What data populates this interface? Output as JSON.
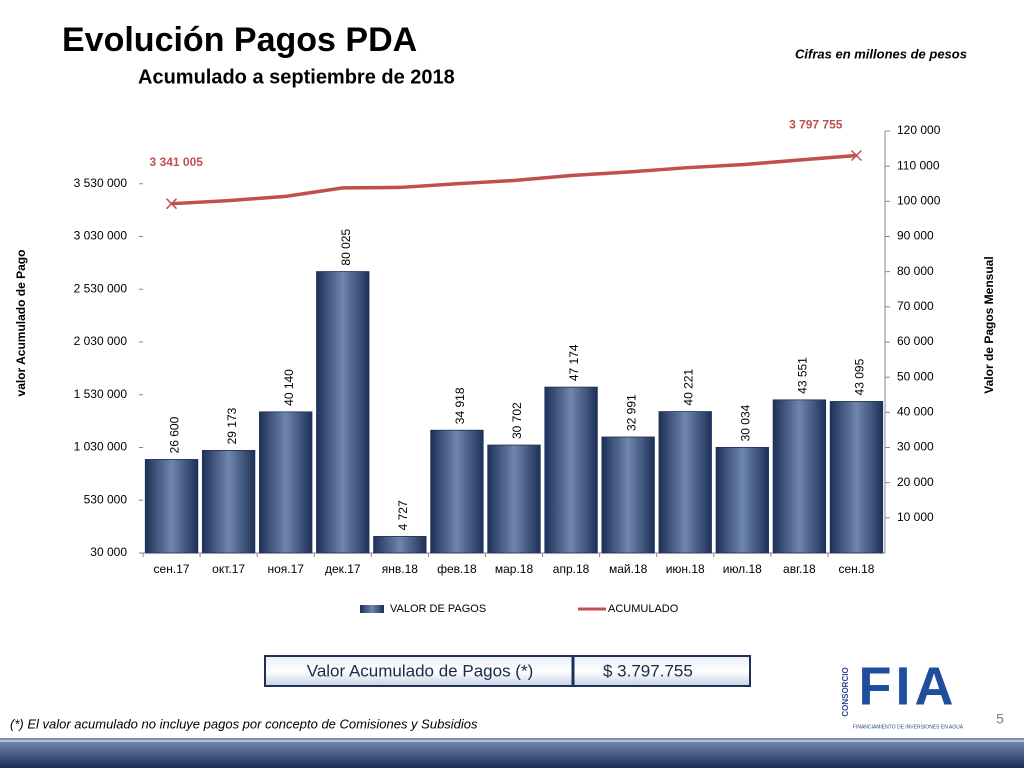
{
  "header": {
    "title": "Evolución Pagos PDA",
    "subtitle": "Acumulado a septiembre de 2018",
    "note": "Cifras en millones de pesos"
  },
  "chart_data": {
    "type": "combo",
    "categories": [
      "сен.17",
      "окт.17",
      "ноя.17",
      "дек.17",
      "янв.18",
      "фев.18",
      "мар.18",
      "апр.18",
      "май.18",
      "июн.18",
      "июл.18",
      "авг.18",
      "сен.18"
    ],
    "ylabel": "valor  Acumulado de Pago",
    "y2label": "Valor de Pagos Mensual",
    "ylim": [
      30000,
      4030000
    ],
    "yticks": [
      {
        "value": 30000,
        "label": "30 000"
      },
      {
        "value": 530000,
        "label": "530 000"
      },
      {
        "value": 1030000,
        "label": "1 030 000"
      },
      {
        "value": 1530000,
        "label": "1 530 000"
      },
      {
        "value": 2030000,
        "label": "2 030 000"
      },
      {
        "value": 2530000,
        "label": "2 530 000"
      },
      {
        "value": 3030000,
        "label": "3 030 000"
      },
      {
        "value": 3530000,
        "label": "3 530 000"
      }
    ],
    "y2lim": [
      0,
      120000
    ],
    "y2ticks": [
      {
        "value": 10000,
        "label": "10 000"
      },
      {
        "value": 20000,
        "label": "20 000"
      },
      {
        "value": 30000,
        "label": "30 000"
      },
      {
        "value": 40000,
        "label": "40 000"
      },
      {
        "value": 50000,
        "label": "50 000"
      },
      {
        "value": 60000,
        "label": "60 000"
      },
      {
        "value": 70000,
        "label": "70 000"
      },
      {
        "value": 80000,
        "label": "80 000"
      },
      {
        "value": 90000,
        "label": "90 000"
      },
      {
        "value": 100000,
        "label": "100 000"
      },
      {
        "value": 110000,
        "label": "110 000"
      },
      {
        "value": 120000,
        "label": "120 000"
      }
    ],
    "legend": "bottom",
    "series": [
      {
        "name": "VALOR DE PAGOS",
        "type": "bar",
        "axis": "y2",
        "color": "#2e4470",
        "values": [
          26600,
          29173,
          40140,
          80025,
          4727,
          34918,
          30702,
          47174,
          32991,
          40221,
          30034,
          43551,
          43095
        ],
        "value_labels": [
          "26 600",
          "29 173",
          "40 140",
          "80 025",
          "4 727",
          "34 918",
          "30 702",
          "47 174",
          "32 991",
          "40 221",
          "30 034",
          "43 551",
          "43 095"
        ]
      },
      {
        "name": "ACUMULADO",
        "type": "line",
        "color": "#c0504d",
        "values": [
          3341005,
          3370178,
          3410318,
          3490343,
          3495070,
          3529988,
          3560690,
          3607864,
          3640855,
          3681076,
          3711110,
          3754661,
          3797755
        ],
        "value_labels": [
          "3 341 005",
          null,
          null,
          null,
          null,
          null,
          null,
          null,
          null,
          null,
          null,
          null,
          "3 797 755"
        ]
      }
    ]
  },
  "summary": {
    "label": "Valor Acumulado de Pagos (*)",
    "value": "$   3.797.755"
  },
  "footnote": "(*) El valor acumulado no incluye  pagos por concepto de Comisiones y Subsidios",
  "page_number": "5",
  "logo": {
    "consortium": "CONSORCIO",
    "name": "FIA",
    "tagline": "FINANCIAMIENTO DE INVERSIONES EN AGUA"
  }
}
